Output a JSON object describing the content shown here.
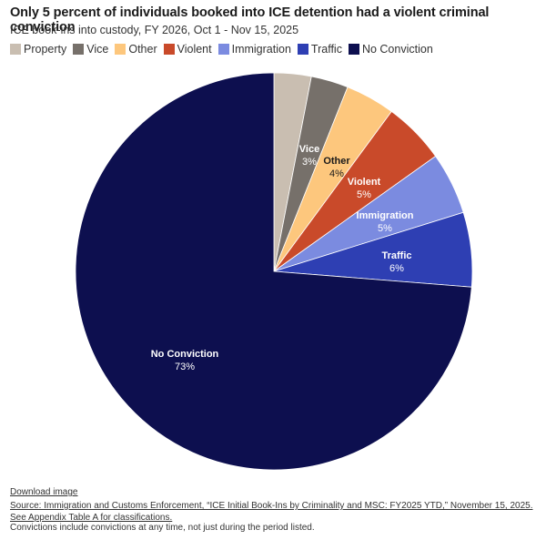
{
  "chart_data": {
    "type": "pie",
    "title": "Only 5 percent of individuals booked into ICE detention had a violent criminal conviction",
    "subtitle": "ICE book-ins into custody, FY 2026, Oct 1 - Nov 15, 2025",
    "legend_position": "top-left",
    "slices": [
      {
        "name": "Property",
        "value": 3,
        "label": "",
        "pct_label": "",
        "color": "#c9beb1",
        "text_color": "#ffffff"
      },
      {
        "name": "Vice",
        "value": 3,
        "label": "Vice",
        "pct_label": "3%",
        "color": "#76706a",
        "text_color": "#ffffff"
      },
      {
        "name": "Other",
        "value": 4,
        "label": "Other",
        "pct_label": "4%",
        "color": "#fdc77d",
        "text_color": "#1a1a1a"
      },
      {
        "name": "Violent",
        "value": 5,
        "label": "Violent",
        "pct_label": "5%",
        "color": "#c94a2a",
        "text_color": "#ffffff"
      },
      {
        "name": "Immigration",
        "value": 5,
        "label": "Immigration",
        "pct_label": "5%",
        "color": "#7b8be0",
        "text_color": "#ffffff"
      },
      {
        "name": "Traffic",
        "value": 6,
        "label": "Traffic",
        "pct_label": "6%",
        "color": "#2e3fb3",
        "text_color": "#ffffff"
      },
      {
        "name": "No Conviction",
        "value": 73,
        "label": "No Conviction",
        "pct_label": "73%",
        "color": "#0d0f4f",
        "text_color": "#ffffff"
      }
    ]
  },
  "footer": {
    "download": "Download image",
    "source": "Source: Immigration and Customs Enforcement, “ICE Initial Book-Ins by Criminality and MSC: FY2025 YTD,” November 15, 2025. See Appendix Table A for classifications.",
    "note": "Convictions include convictions at any time, not just during the period listed."
  }
}
